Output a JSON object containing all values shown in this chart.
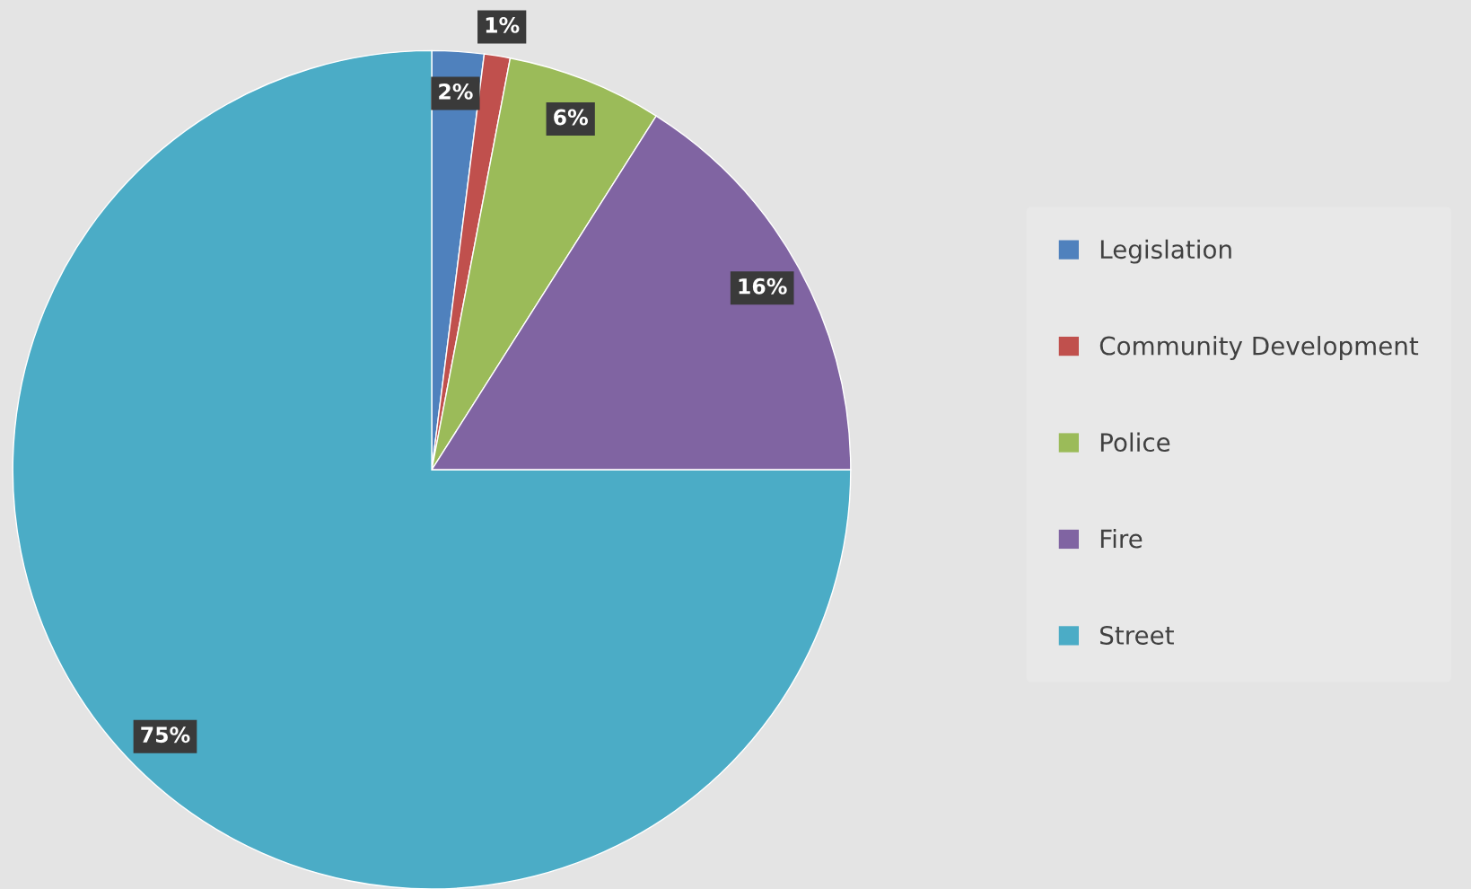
{
  "chart_data": {
    "type": "pie",
    "categories": [
      "Legislation",
      "Community Development",
      "Police",
      "Fire",
      "Street"
    ],
    "values": [
      2,
      1,
      6,
      16,
      75
    ],
    "colors": [
      "#4f81bd",
      "#c0504d",
      "#9bbb59",
      "#8064a2",
      "#4bacc6"
    ],
    "value_labels": [
      "2%",
      "1%",
      "6%",
      "16%",
      "75%"
    ],
    "legend": "right"
  }
}
